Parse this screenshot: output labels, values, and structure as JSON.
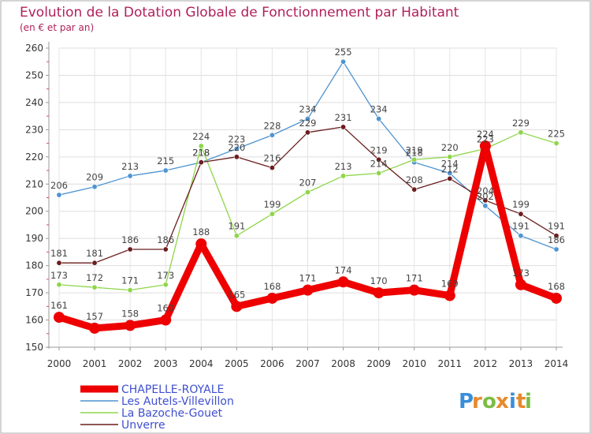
{
  "chart_data": {
    "type": "line",
    "title": "Evolution de la Dotation Globale de Fonctionnement par Habitant",
    "subtitle": "(en € et par an)",
    "x": [
      "2000",
      "2001",
      "2002",
      "2003",
      "2004",
      "2005",
      "2006",
      "2007",
      "2008",
      "2009",
      "2010",
      "2011",
      "2012",
      "2013",
      "2014"
    ],
    "ylim": [
      150,
      260
    ],
    "yticks": [
      150,
      160,
      170,
      180,
      190,
      200,
      210,
      220,
      230,
      240,
      250,
      260
    ],
    "grid": true,
    "legend_position": "bottom-left",
    "series": [
      {
        "name": "CHAPELLE-ROYALE",
        "color": "#ee0000",
        "values": [
          161,
          157,
          158,
          160,
          188,
          165,
          168,
          171,
          174,
          170,
          171,
          169,
          224,
          173,
          168
        ]
      },
      {
        "name": "Les Autels-Villevillon",
        "color": "#4e94d2",
        "values": [
          206,
          209,
          213,
          215,
          218,
          223,
          228,
          234,
          255,
          234,
          218,
          214,
          202,
          191,
          186
        ]
      },
      {
        "name": "La Bazoche-Gouet",
        "color": "#8ed64a",
        "values": [
          173,
          172,
          171,
          173,
          224,
          191,
          199,
          207,
          213,
          214,
          219,
          220,
          223,
          229,
          225
        ]
      },
      {
        "name": "Unverre",
        "color": "#6b1d1d",
        "values": [
          181,
          181,
          186,
          186,
          218,
          220,
          216,
          229,
          231,
          219,
          208,
          212,
          204,
          199,
          191
        ]
      }
    ]
  },
  "logo": {
    "text": "Proxiti"
  }
}
